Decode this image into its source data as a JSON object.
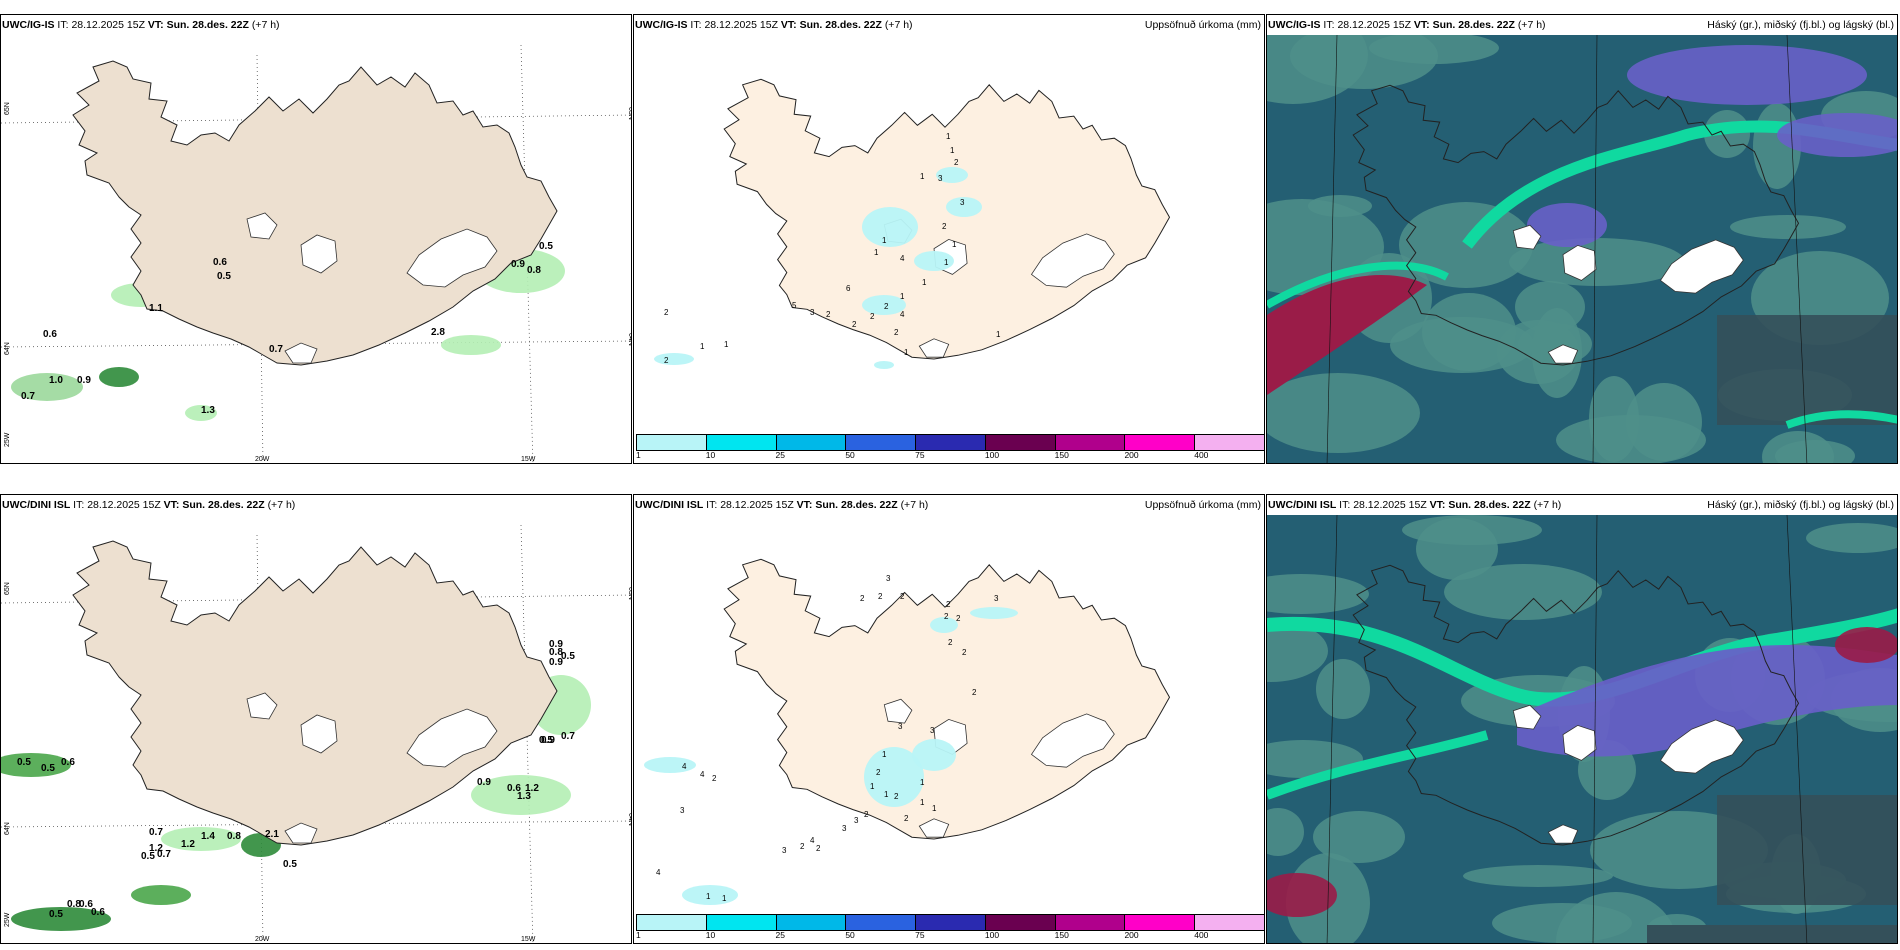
{
  "panels": [
    {
      "id": "p1",
      "model": "UWC/IG-IS",
      "it_label": "IT:",
      "it": "28.12.2025 15Z",
      "vt_label": "VT:",
      "vt": "Sun. 28.des. 22Z",
      "lead": "(+7 h)",
      "right": "",
      "lat_labels": [
        "65N",
        "64N"
      ],
      "lon_labels": [
        "25W",
        "20W",
        "15W"
      ],
      "values": [
        "0.6",
        "0.5",
        "1.1",
        "0.6",
        "0.7",
        "0.9",
        "0.8",
        "0.5",
        "2.8",
        "1.0",
        "0.9",
        "0.7",
        "1.3"
      ]
    },
    {
      "id": "p2",
      "model": "UWC/IG-IS",
      "it_label": "IT:",
      "it": "28.12.2025 15Z",
      "vt_label": "VT:",
      "vt": "Sun. 28.des. 22Z",
      "lead": "(+7 h)",
      "right": "Uppsöfnuð úrkoma (mm)",
      "values": [
        "1",
        "1",
        "2",
        "3",
        "3",
        "1",
        "2",
        "1",
        "1",
        "1",
        "2",
        "1",
        "4",
        "6",
        "5",
        "3",
        "2",
        "2",
        "2",
        "2",
        "1",
        "4",
        "1",
        "1",
        "1",
        "1",
        "2",
        "2",
        "1"
      ]
    },
    {
      "id": "p3",
      "model": "UWC/IG-IS",
      "it_label": "IT:",
      "it": "28.12.2025 15Z",
      "vt_label": "VT:",
      "vt": "Sun. 28.des. 22Z",
      "lead": "(+7 h)",
      "right": "Háský (gr.), miðský (fj.bl.) og lágský (bl.)"
    },
    {
      "id": "p4",
      "model": "UWC/DINI ISL",
      "it_label": "IT:",
      "it": "28.12.2025 15Z",
      "vt_label": "VT:",
      "vt": "Sun. 28.des. 22Z",
      "lead": "(+7 h)",
      "right": "",
      "lat_labels": [
        "65N",
        "64N"
      ],
      "lon_labels": [
        "25W",
        "20W",
        "15W"
      ],
      "values": [
        "0.5",
        "0.5",
        "0.6",
        "0.8",
        "0.9",
        "0.5",
        "0.7",
        "1.2",
        "0.7",
        "0.5",
        "1.4",
        "1.2",
        "0.8",
        "2.1",
        "0.5",
        "0.9",
        "0.6",
        "1.2",
        "1.3",
        "0.9",
        "0.7",
        "0.8",
        "0.6",
        "0.5",
        "0.6",
        "0.9",
        "0.5"
      ]
    },
    {
      "id": "p5",
      "model": "UWC/DINI ISL",
      "it_label": "IT:",
      "it": "28.12.2025 15Z",
      "vt_label": "VT:",
      "vt": "Sun. 28.des. 22Z",
      "lead": "(+7 h)",
      "right": "Uppsöfnuð úrkoma (mm)",
      "values": [
        "2",
        "2",
        "2",
        "2",
        "2",
        "2",
        "3",
        "2",
        "2",
        "2",
        "3",
        "1",
        "2",
        "1",
        "1",
        "2",
        "3",
        "3",
        "4",
        "3",
        "2",
        "2",
        "2",
        "2",
        "1",
        "1",
        "1",
        "3",
        "3",
        "4",
        "4",
        "2",
        "3",
        "4",
        "1",
        "1"
      ]
    },
    {
      "id": "p6",
      "model": "UWC/DINI ISL",
      "it_label": "IT:",
      "it": "28.12.2025 15Z",
      "vt_label": "VT:",
      "vt": "Sun. 28.des. 22Z",
      "lead": "(+7 h)",
      "right": "Háský (gr.), miðský (fj.bl.) og lágský (bl.)"
    }
  ],
  "precip_legend": {
    "ticks": [
      "1",
      "10",
      "25",
      "50",
      "75",
      "100",
      "150",
      "200",
      "400"
    ],
    "colors": [
      "#b8f4f7",
      "#00e5f0",
      "#00b8e8",
      "#2a62e0",
      "#2a2ab0",
      "#6a0050",
      "#b0008c",
      "#ff00c8",
      "#f4b0f0"
    ]
  },
  "colors": {
    "land": "#ede0d0",
    "land_precip": "#fdf0e1",
    "cloud_low": "#245f73",
    "cloud_mid": "#4f8f8a",
    "cloud_high": "#10d9a0",
    "cloud_purple": "#6860c8",
    "cloud_red": "#9a1c48"
  }
}
